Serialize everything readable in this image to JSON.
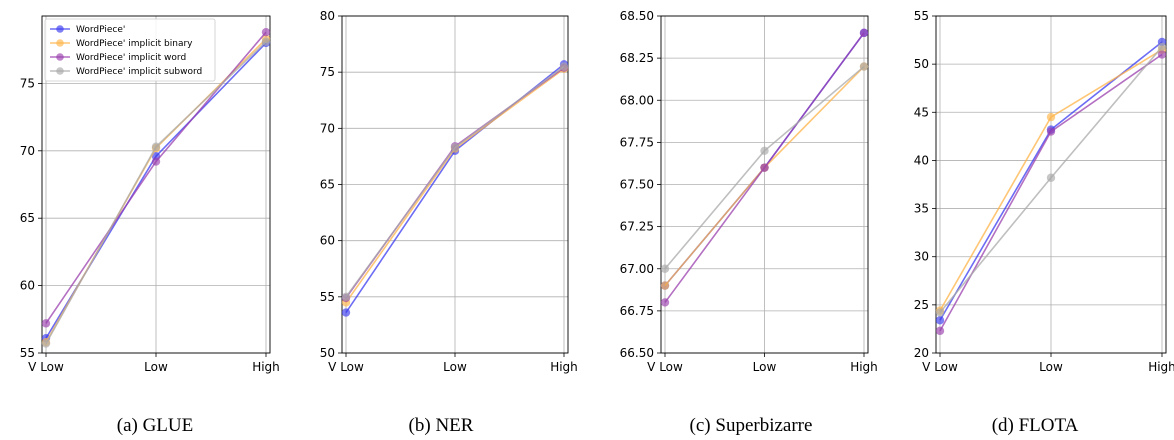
{
  "chart_data": [
    {
      "type": "line",
      "caption": "(a) GLUE",
      "categories": [
        "V Low",
        "Low",
        "High"
      ],
      "ylim": [
        55,
        80
      ],
      "yticks": [
        "55",
        "60",
        "65",
        "70",
        "75"
      ],
      "grid": true,
      "legend": "top-left",
      "series": [
        {
          "name": "WordPiece'",
          "values": [
            56.1,
            69.6,
            78.0
          ]
        },
        {
          "name": "WordPiece' implicit binary",
          "values": [
            55.8,
            70.2,
            78.3
          ]
        },
        {
          "name": "WordPiece' implicit word",
          "values": [
            57.2,
            69.2,
            78.8
          ]
        },
        {
          "name": "WordPiece' implicit subword",
          "values": [
            55.7,
            70.3,
            78.1
          ]
        }
      ]
    },
    {
      "type": "line",
      "caption": "(b) NER",
      "categories": [
        "V Low",
        "Low",
        "High"
      ],
      "ylim": [
        50,
        80
      ],
      "yticks": [
        "50",
        "55",
        "60",
        "65",
        "70",
        "75",
        "80"
      ],
      "grid": true,
      "series": [
        {
          "name": "WordPiece'",
          "values": [
            53.6,
            68.0,
            75.7
          ]
        },
        {
          "name": "WordPiece' implicit binary",
          "values": [
            54.5,
            68.2,
            75.3
          ]
        },
        {
          "name": "WordPiece' implicit word",
          "values": [
            54.9,
            68.4,
            75.4
          ]
        },
        {
          "name": "WordPiece' implicit subword",
          "values": [
            55.0,
            68.3,
            75.5
          ]
        }
      ]
    },
    {
      "type": "line",
      "caption": "(c) Superbizarre",
      "categories": [
        "V Low",
        "Low",
        "High"
      ],
      "ylim": [
        66.5,
        68.5
      ],
      "yticks": [
        "66.50",
        "66.75",
        "67.00",
        "67.25",
        "67.50",
        "67.75",
        "68.00",
        "68.25",
        "68.50"
      ],
      "grid": true,
      "series": [
        {
          "name": "WordPiece'",
          "values": [
            66.9,
            67.6,
            68.4
          ]
        },
        {
          "name": "WordPiece' implicit binary",
          "values": [
            66.9,
            67.6,
            68.2
          ]
        },
        {
          "name": "WordPiece' implicit word",
          "values": [
            66.8,
            67.6,
            68.4
          ]
        },
        {
          "name": "WordPiece' implicit subword",
          "values": [
            67.0,
            67.7,
            68.2
          ]
        }
      ]
    },
    {
      "type": "line",
      "caption": "(d) FLOTA",
      "categories": [
        "V Low",
        "Low",
        "High"
      ],
      "ylim": [
        20,
        55
      ],
      "yticks": [
        "20",
        "25",
        "30",
        "35",
        "40",
        "45",
        "50",
        "55"
      ],
      "grid": true,
      "series": [
        {
          "name": "WordPiece'",
          "values": [
            23.4,
            43.2,
            52.3
          ]
        },
        {
          "name": "WordPiece' implicit binary",
          "values": [
            24.4,
            44.5,
            51.5
          ]
        },
        {
          "name": "WordPiece' implicit word",
          "values": [
            22.3,
            43.0,
            51.0
          ]
        },
        {
          "name": "WordPiece' implicit subword",
          "values": [
            24.2,
            38.2,
            51.8
          ]
        }
      ]
    }
  ],
  "colors": [
    "#3b3bf0",
    "#ffb347",
    "#9a3fae",
    "#a9a9a9"
  ]
}
